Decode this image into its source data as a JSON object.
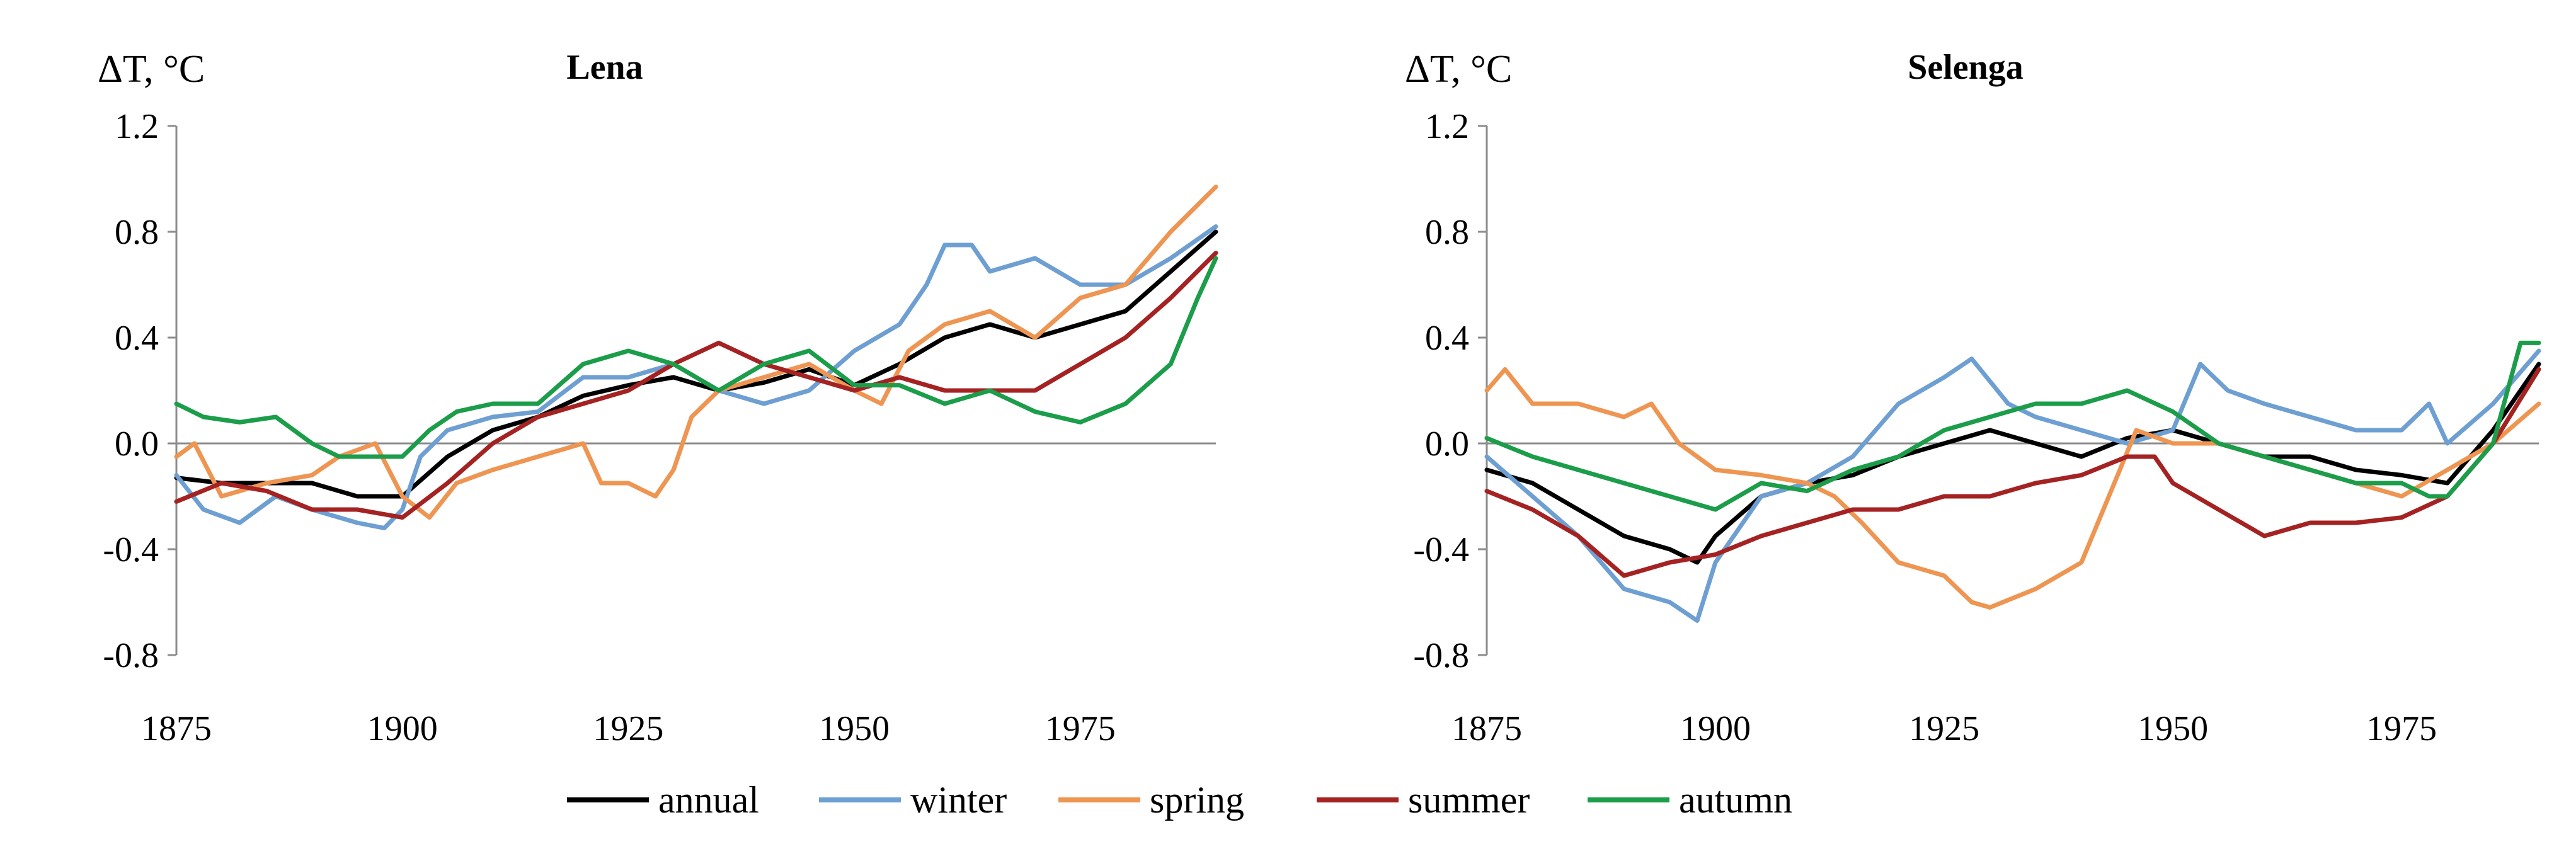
{
  "chart_data": [
    {
      "type": "line",
      "title": "Lena",
      "ylabel": "ΔT, °C",
      "xlim": [
        1875,
        1990
      ],
      "ylim": [
        -0.8,
        1.2
      ],
      "xticks": [
        "1875",
        "1900",
        "1925",
        "1950",
        "1975"
      ],
      "yticks": [
        "1.2",
        "0.8",
        "0.4",
        "0.0",
        "-0.4",
        "-0.8"
      ],
      "series": [
        {
          "name": "annual",
          "color": "#000000",
          "x": [
            1875,
            1880,
            1885,
            1890,
            1895,
            1900,
            1905,
            1910,
            1915,
            1920,
            1925,
            1930,
            1935,
            1940,
            1945,
            1950,
            1955,
            1960,
            1965,
            1970,
            1975,
            1980,
            1985,
            1990
          ],
          "y": [
            -0.13,
            -0.15,
            -0.15,
            -0.15,
            -0.2,
            -0.2,
            -0.05,
            0.05,
            0.1,
            0.18,
            0.22,
            0.25,
            0.2,
            0.23,
            0.28,
            0.22,
            0.3,
            0.4,
            0.45,
            0.4,
            0.45,
            0.5,
            0.65,
            0.8
          ]
        },
        {
          "name": "winter",
          "color": "#6e9fd2",
          "x": [
            1875,
            1878,
            1882,
            1886,
            1890,
            1895,
            1898,
            1900,
            1902,
            1905,
            1910,
            1915,
            1920,
            1925,
            1930,
            1935,
            1940,
            1945,
            1950,
            1955,
            1958,
            1960,
            1963,
            1965,
            1970,
            1975,
            1980,
            1985,
            1990
          ],
          "y": [
            -0.12,
            -0.25,
            -0.3,
            -0.2,
            -0.25,
            -0.3,
            -0.32,
            -0.25,
            -0.05,
            0.05,
            0.1,
            0.12,
            0.25,
            0.25,
            0.3,
            0.2,
            0.15,
            0.2,
            0.35,
            0.45,
            0.6,
            0.75,
            0.75,
            0.65,
            0.7,
            0.6,
            0.6,
            0.7,
            0.82
          ]
        },
        {
          "name": "spring",
          "color": "#ee9552",
          "x": [
            1875,
            1877,
            1880,
            1885,
            1890,
            1893,
            1897,
            1900,
            1903,
            1906,
            1910,
            1915,
            1920,
            1922,
            1925,
            1928,
            1930,
            1932,
            1935,
            1940,
            1945,
            1950,
            1953,
            1956,
            1960,
            1965,
            1970,
            1975,
            1980,
            1985,
            1990
          ],
          "y": [
            -0.05,
            0.0,
            -0.2,
            -0.15,
            -0.12,
            -0.05,
            0.0,
            -0.2,
            -0.28,
            -0.15,
            -0.1,
            -0.05,
            0.0,
            -0.15,
            -0.15,
            -0.2,
            -0.1,
            0.1,
            0.2,
            0.25,
            0.3,
            0.2,
            0.15,
            0.35,
            0.45,
            0.5,
            0.4,
            0.55,
            0.6,
            0.8,
            0.97
          ]
        },
        {
          "name": "summer",
          "color": "#a52222",
          "x": [
            1875,
            1880,
            1885,
            1890,
            1895,
            1900,
            1905,
            1910,
            1915,
            1920,
            1925,
            1930,
            1935,
            1940,
            1945,
            1950,
            1955,
            1960,
            1965,
            1970,
            1975,
            1980,
            1985,
            1990
          ],
          "y": [
            -0.22,
            -0.15,
            -0.18,
            -0.25,
            -0.25,
            -0.28,
            -0.15,
            0.0,
            0.1,
            0.15,
            0.2,
            0.3,
            0.38,
            0.3,
            0.25,
            0.2,
            0.25,
            0.2,
            0.2,
            0.2,
            0.3,
            0.4,
            0.55,
            0.72
          ]
        },
        {
          "name": "autumn",
          "color": "#1b9d4a",
          "x": [
            1875,
            1878,
            1882,
            1886,
            1890,
            1893,
            1896,
            1900,
            1903,
            1906,
            1910,
            1915,
            1920,
            1925,
            1930,
            1935,
            1940,
            1945,
            1950,
            1955,
            1960,
            1965,
            1970,
            1975,
            1980,
            1985,
            1988,
            1990
          ],
          "y": [
            0.15,
            0.1,
            0.08,
            0.1,
            0.0,
            -0.05,
            -0.05,
            -0.05,
            0.05,
            0.12,
            0.15,
            0.15,
            0.3,
            0.35,
            0.3,
            0.2,
            0.3,
            0.35,
            0.22,
            0.22,
            0.15,
            0.2,
            0.12,
            0.08,
            0.15,
            0.3,
            0.55,
            0.7
          ]
        }
      ]
    },
    {
      "type": "line",
      "title": "Selenga",
      "ylabel": "ΔT, °C",
      "xlim": [
        1875,
        1990
      ],
      "ylim": [
        -0.8,
        1.2
      ],
      "xticks": [
        "1875",
        "1900",
        "1925",
        "1950",
        "1975"
      ],
      "yticks": [
        "1.2",
        "0.8",
        "0.4",
        "0.0",
        "-0.4",
        "-0.8"
      ],
      "series": [
        {
          "name": "annual",
          "color": "#000000",
          "x": [
            1875,
            1880,
            1885,
            1890,
            1895,
            1898,
            1900,
            1905,
            1910,
            1915,
            1920,
            1925,
            1930,
            1935,
            1940,
            1945,
            1950,
            1955,
            1960,
            1965,
            1970,
            1975,
            1980,
            1985,
            1990
          ],
          "y": [
            -0.1,
            -0.15,
            -0.25,
            -0.35,
            -0.4,
            -0.45,
            -0.35,
            -0.2,
            -0.15,
            -0.12,
            -0.05,
            0.0,
            0.05,
            0.0,
            -0.05,
            0.02,
            0.05,
            0.0,
            -0.05,
            -0.05,
            -0.1,
            -0.12,
            -0.15,
            0.05,
            0.3
          ]
        },
        {
          "name": "winter",
          "color": "#6e9fd2",
          "x": [
            1875,
            1880,
            1885,
            1890,
            1895,
            1898,
            1900,
            1905,
            1910,
            1915,
            1920,
            1925,
            1928,
            1932,
            1935,
            1940,
            1945,
            1950,
            1953,
            1956,
            1960,
            1965,
            1970,
            1975,
            1978,
            1980,
            1985,
            1990
          ],
          "y": [
            -0.05,
            -0.2,
            -0.35,
            -0.55,
            -0.6,
            -0.67,
            -0.45,
            -0.2,
            -0.15,
            -0.05,
            0.15,
            0.25,
            0.32,
            0.15,
            0.1,
            0.05,
            0.0,
            0.05,
            0.3,
            0.2,
            0.15,
            0.1,
            0.05,
            0.05,
            0.15,
            0.0,
            0.15,
            0.35
          ]
        },
        {
          "name": "spring",
          "color": "#ee9552",
          "x": [
            1875,
            1877,
            1880,
            1885,
            1890,
            1893,
            1896,
            1900,
            1905,
            1910,
            1913,
            1916,
            1920,
            1925,
            1928,
            1930,
            1935,
            1940,
            1943,
            1946,
            1950,
            1955,
            1960,
            1965,
            1970,
            1975,
            1980,
            1985,
            1990
          ],
          "y": [
            0.2,
            0.28,
            0.15,
            0.15,
            0.1,
            0.15,
            0.0,
            -0.1,
            -0.12,
            -0.15,
            -0.2,
            -0.3,
            -0.45,
            -0.5,
            -0.6,
            -0.62,
            -0.55,
            -0.45,
            -0.2,
            0.05,
            0.0,
            0.0,
            -0.05,
            -0.1,
            -0.15,
            -0.2,
            -0.1,
            0.0,
            0.15
          ]
        },
        {
          "name": "summer",
          "color": "#a52222",
          "x": [
            1875,
            1880,
            1885,
            1890,
            1895,
            1900,
            1905,
            1910,
            1915,
            1920,
            1925,
            1930,
            1935,
            1940,
            1945,
            1948,
            1950,
            1955,
            1960,
            1965,
            1970,
            1975,
            1980,
            1985,
            1990
          ],
          "y": [
            -0.18,
            -0.25,
            -0.35,
            -0.5,
            -0.45,
            -0.42,
            -0.35,
            -0.3,
            -0.25,
            -0.25,
            -0.2,
            -0.2,
            -0.15,
            -0.12,
            -0.05,
            -0.05,
            -0.15,
            -0.25,
            -0.35,
            -0.3,
            -0.3,
            -0.28,
            -0.2,
            0.0,
            0.28
          ]
        },
        {
          "name": "autumn",
          "color": "#1b9d4a",
          "x": [
            1875,
            1880,
            1885,
            1890,
            1895,
            1900,
            1905,
            1910,
            1915,
            1920,
            1925,
            1930,
            1935,
            1940,
            1945,
            1950,
            1955,
            1960,
            1965,
            1970,
            1975,
            1978,
            1980,
            1985,
            1988,
            1990
          ],
          "y": [
            0.02,
            -0.05,
            -0.1,
            -0.15,
            -0.2,
            -0.25,
            -0.15,
            -0.18,
            -0.1,
            -0.05,
            0.05,
            0.1,
            0.15,
            0.15,
            0.2,
            0.12,
            0.0,
            -0.05,
            -0.1,
            -0.15,
            -0.15,
            -0.2,
            -0.2,
            0.0,
            0.38,
            0.38
          ]
        }
      ]
    }
  ],
  "legend": {
    "placement": "bottom",
    "items": [
      "annual",
      "winter",
      "spring",
      "summer",
      "autumn"
    ]
  }
}
